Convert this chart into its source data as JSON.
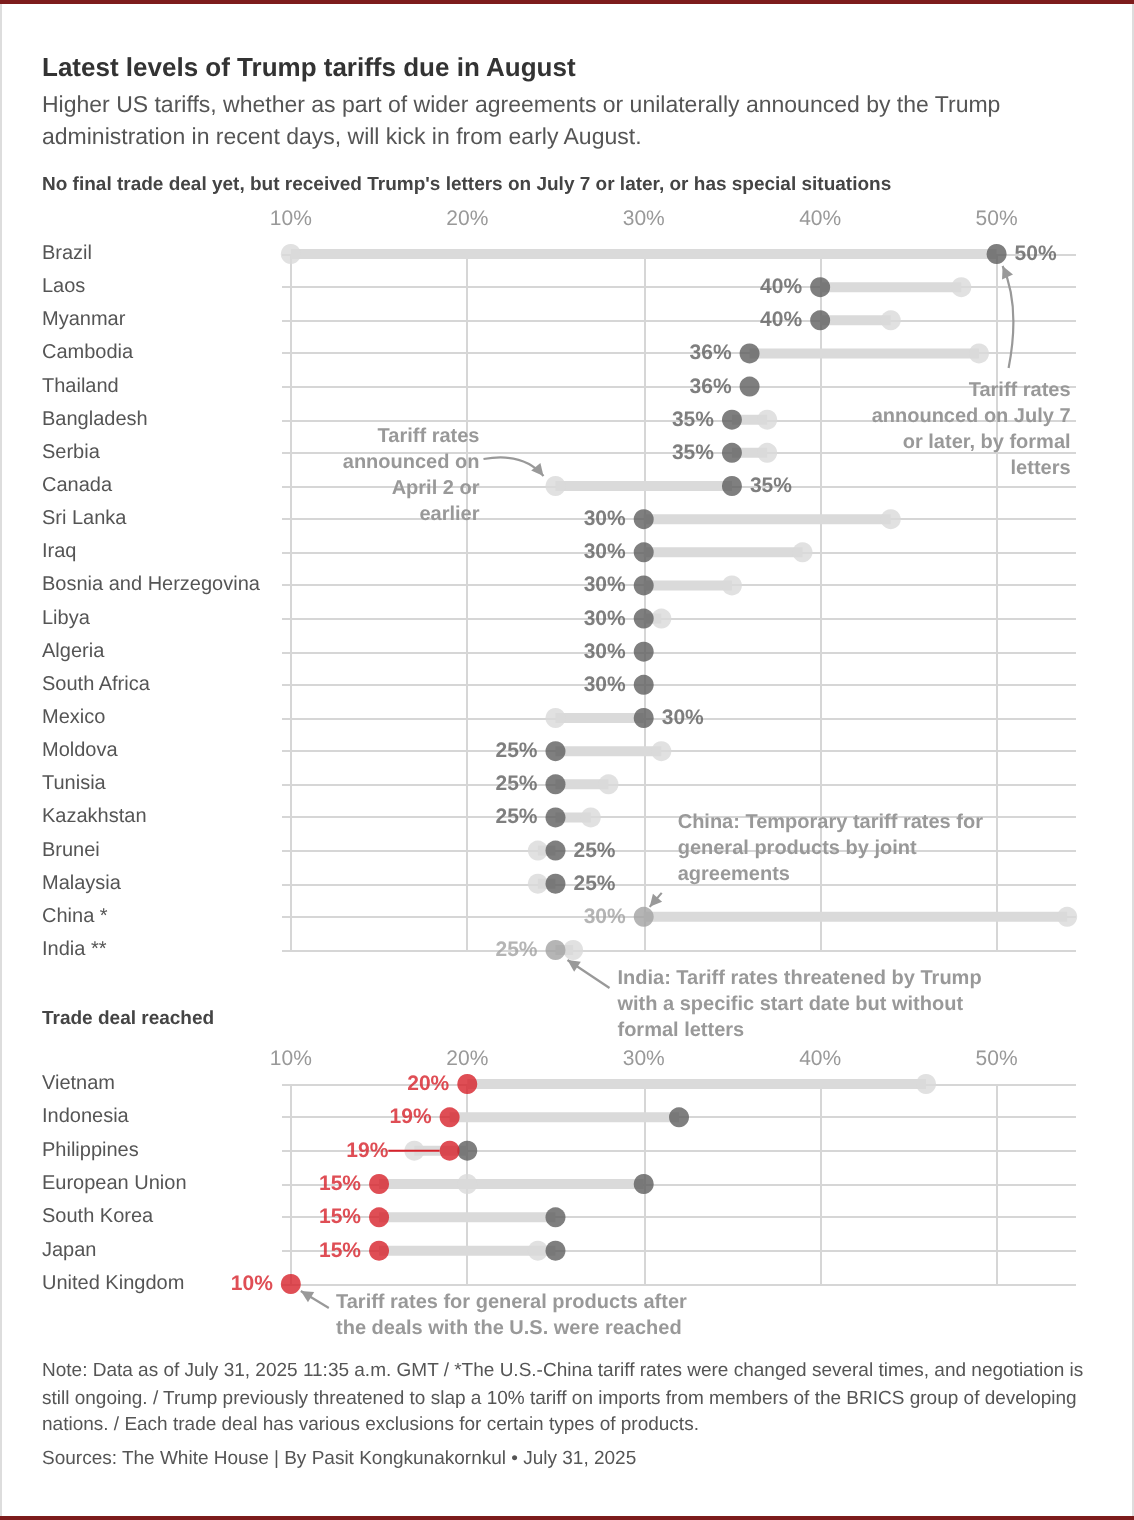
{
  "chart_data": [
    {
      "type": "scatter",
      "orientation": "horizontal",
      "title": "Latest levels of Trump tariffs due in August",
      "subtitle": "Higher US tariffs, whether as part of wider agreements or unilaterally announced by the Trump administration in recent days, will kick in from early August.",
      "categories": [
        "Brazil",
        "Laos",
        "Myanmar",
        "Cambodia",
        "Thailand",
        "Bangladesh",
        "Serbia",
        "Canada",
        "Sri Lanka",
        "Iraq",
        "Bosnia and Herzegovina",
        "Libya",
        "Algeria",
        "South Africa",
        "Mexico",
        "Moldova",
        "Tunisia",
        "Kazakhstan",
        "Brunei",
        "Malaysia",
        "China *",
        "India **"
      ],
      "series": [
        {
          "color": "#dadada",
          "values": [
            10,
            48,
            44,
            49,
            null,
            37,
            37,
            25,
            44,
            39,
            35,
            31,
            null,
            null,
            25,
            31,
            28,
            27,
            24,
            24,
            54,
            26
          ]
        },
        {
          "colors": [
            "#5f5f5f",
            "#5f5f5f",
            "#5f5f5f",
            "#5f5f5f",
            "#5f5f5f",
            "#5f5f5f",
            "#5f5f5f",
            "#5f5f5f",
            "#5f5f5f",
            "#5f5f5f",
            "#5f5f5f",
            "#5f5f5f",
            "#5f5f5f",
            "#5f5f5f",
            "#5f5f5f",
            "#5f5f5f",
            "#5f5f5f",
            "#5f5f5f",
            "#5f5f5f",
            "#5f5f5f",
            "#a3a3a3",
            "#a3a3a3"
          ],
          "values": [
            50,
            40,
            40,
            36,
            36,
            35,
            35,
            35,
            30,
            30,
            30,
            30,
            30,
            30,
            30,
            25,
            25,
            25,
            25,
            25,
            30,
            25
          ],
          "value_labels": [
            "50%",
            "40%",
            "40%",
            "36%",
            "36%",
            "35%",
            "35%",
            "35%",
            "30%",
            "30%",
            "30%",
            "30%",
            "30%",
            "30%",
            "30%",
            "25%",
            "25%",
            "25%",
            "25%",
            "25%",
            "30%",
            "25%"
          ]
        }
      ],
      "xlim": [
        9.5,
        54.5
      ],
      "xticks": [
        {
          "value": 10,
          "label": "10%"
        },
        {
          "value": 20,
          "label": "20%"
        },
        {
          "value": 30,
          "label": "30%"
        },
        {
          "value": 40,
          "label": "40%"
        },
        {
          "value": 50,
          "label": "50%"
        }
      ],
      "grid": true,
      "marker": "circle",
      "annotations": [
        "No final trade deal yet, but received Trump's letters on July 7 or later, or has special situations",
        {
          "text": "Tariff rates announced on April 2 or earlier",
          "x": 25,
          "y": "Canada"
        },
        {
          "text": "Tariff rates announced on July 7 or later, by formal letters",
          "x": 50,
          "y": "Brazil"
        },
        {
          "text": "China: Temporary tariff rates for general products by joint agreements",
          "x": 30,
          "y": "China *"
        },
        {
          "text": "India: Tariff rates threatened by Trump with a specific start date but without formal letters",
          "x": 25,
          "y": "India **"
        }
      ]
    },
    {
      "type": "scatter",
      "orientation": "horizontal",
      "title": "Trade deal reached",
      "categories": [
        "Vietnam",
        "Indonesia",
        "Philippines",
        "European Union",
        "South Korea",
        "Japan",
        "United Kingdom"
      ],
      "series": [
        {
          "color": "#dadada",
          "values": [
            46,
            null,
            17,
            20,
            null,
            24,
            null
          ]
        },
        {
          "color": "#5f5f5f",
          "values": [
            null,
            32,
            20,
            30,
            25,
            25,
            null
          ]
        },
        {
          "color": "#d7222b",
          "values": [
            20,
            19,
            19,
            15,
            15,
            15,
            10
          ],
          "value_labels": [
            "20%",
            "19%",
            "19%",
            "15%",
            "15%",
            "15%",
            "10%"
          ]
        }
      ],
      "xlim": [
        9.5,
        54.5
      ],
      "xticks": [
        {
          "value": 10,
          "label": "10%"
        },
        {
          "value": 20,
          "label": "20%"
        },
        {
          "value": 30,
          "label": "30%"
        },
        {
          "value": 40,
          "label": "40%"
        },
        {
          "value": 50,
          "label": "50%"
        }
      ],
      "grid": true,
      "marker": "circle",
      "annotations": [
        {
          "text": "Tariff rates for general products after the deals with the U.S. were reached",
          "x": 10,
          "y": "United Kingdom"
        },
        "Note: Data as of July 31, 2025 11:35 a.m. GMT / *The U.S.-China tariff rates were changed several times, and negotiation is still ongoing. / Trump previously threatened to slap a 10% tariff on imports from members of the BRICS group of developing nations. / Each trade deal has various exclusions for certain types of products.",
        "Sources: The White House | By Pasit Kongkunakornkul • July 31, 2025"
      ]
    }
  ]
}
